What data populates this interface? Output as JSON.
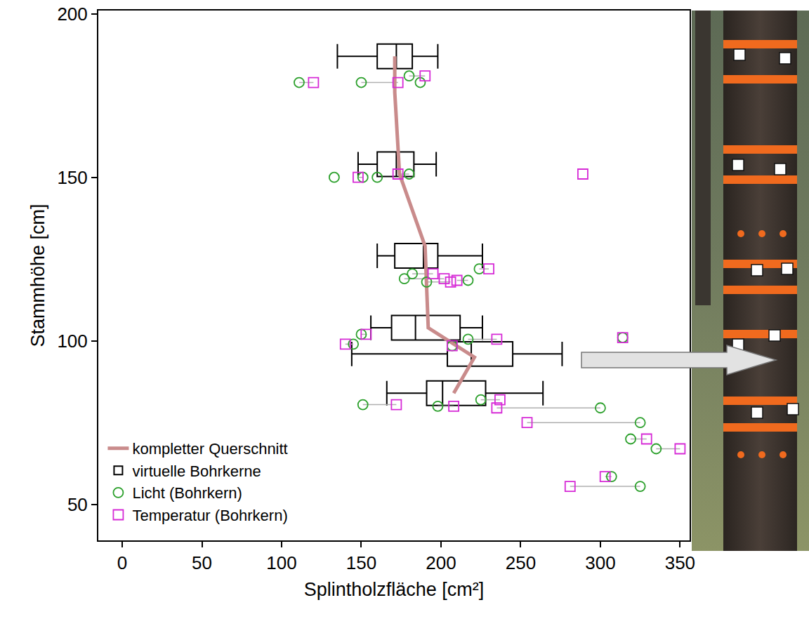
{
  "chart_data": {
    "type": "scatter",
    "x_label": "Splintholzfläche [cm²]",
    "y_label": "Stammhöhe [cm]",
    "xlim": [
      -15,
      356
    ],
    "xticks": [
      0,
      50,
      100,
      150,
      200,
      250,
      300,
      350
    ],
    "ylim": [
      39,
      201
    ],
    "yticks": [
      50,
      100,
      150,
      200
    ],
    "grid": false,
    "legend": "bottom left",
    "series": [
      {
        "name": "kompletter Querschnitt",
        "type": "line",
        "color": "#c98b8b",
        "x": [
          208,
          221,
          192,
          190,
          174,
          171,
          171
        ],
        "y": [
          84,
          95,
          104,
          129,
          151,
          176,
          187
        ]
      },
      {
        "name": "virtuelle Bohrkerne",
        "type": "box",
        "color": "#000000",
        "y": [
          84,
          96,
          104,
          126,
          154,
          187
        ],
        "lowerfence": [
          166,
          144,
          156,
          160,
          148,
          135
        ],
        "q1": [
          191,
          204,
          169,
          171,
          160,
          160
        ],
        "median": [
          201,
          219,
          184,
          189,
          172,
          172
        ],
        "q3": [
          228,
          245,
          212,
          198,
          183,
          182
        ],
        "upperfence": [
          264,
          276,
          226,
          226,
          197,
          198
        ]
      },
      {
        "name": "Licht (Bohrkern)",
        "type": "scatter",
        "marker": "circle-open",
        "color": "#2ca02c",
        "x": [
          111,
          150,
          187,
          180,
          133,
          151,
          160,
          180,
          null,
          224,
          182,
          177,
          191,
          217,
          150,
          145,
          217,
          207,
          314,
          151,
          198,
          225,
          300,
          325,
          319,
          335,
          307,
          325
        ],
        "y": [
          179,
          179,
          179,
          181,
          150,
          150,
          150,
          151,
          null,
          122,
          120.5,
          119,
          118,
          118.5,
          102,
          99,
          100.5,
          98.5,
          101,
          80.5,
          80,
          82,
          79.5,
          75,
          70,
          67,
          58.5,
          55.5
        ]
      },
      {
        "name": "Temperatur (Bohrkern)",
        "type": "scatter",
        "marker": "square-open",
        "color": "#d62ad6",
        "x": [
          120,
          173,
          null,
          190,
          null,
          148,
          null,
          173,
          289,
          230,
          195,
          202,
          206,
          210,
          153,
          140,
          235,
          207,
          314,
          172,
          208,
          237,
          235,
          254,
          329,
          350,
          303,
          281
        ],
        "y": [
          179,
          179,
          null,
          181,
          null,
          150,
          null,
          151,
          151,
          122,
          120.5,
          119,
          118,
          118.5,
          102,
          99,
          100.5,
          98.5,
          101,
          80.5,
          80,
          82,
          79.5,
          75,
          70,
          67,
          58.5,
          55.5
        ]
      }
    ]
  }
}
